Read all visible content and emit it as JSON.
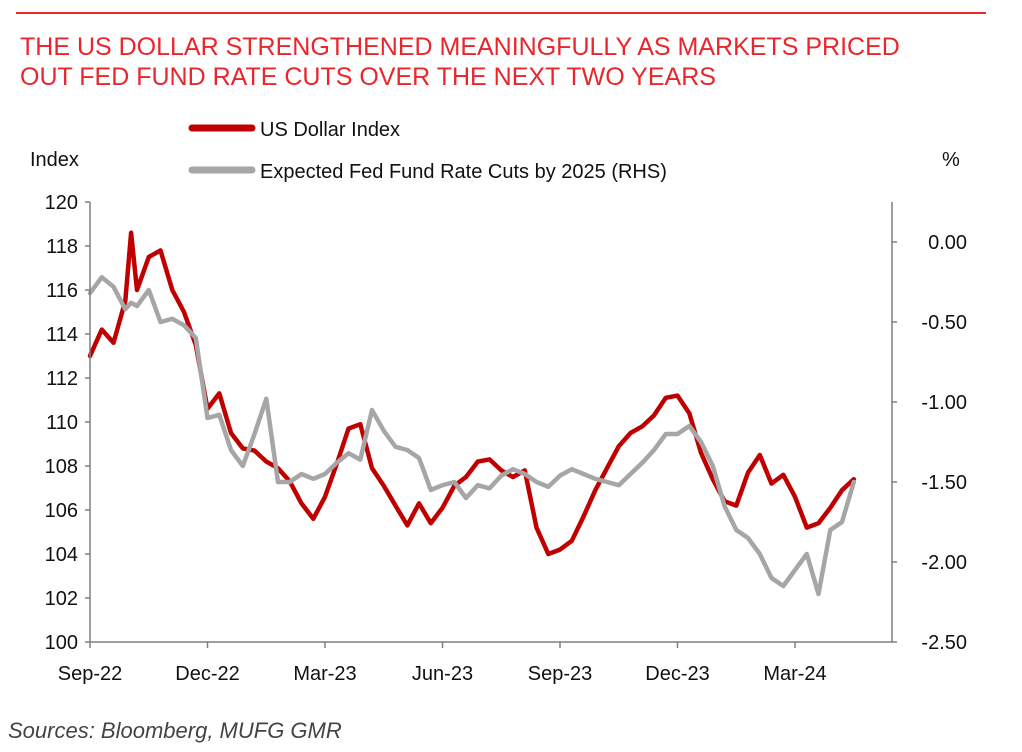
{
  "header": {
    "title_line1": "THE US DOLLAR STRENGTHENED MEANINGFULLY AS MARKETS PRICED",
    "title_line2": "OUT FED FUND RATE CUTS OVER THE NEXT TWO YEARS"
  },
  "footer": {
    "source": "Sources:  Bloomberg, MUFG GMR"
  },
  "colors": {
    "title": "#e8262b",
    "usd": "#c00000",
    "cuts": "#a6a6a6",
    "axis": "#7f7f7f"
  },
  "chart_data": {
    "type": "line",
    "left_axis_label": "Index",
    "right_axis_label": "%",
    "left_ylim": [
      100,
      120
    ],
    "right_ylim": [
      -2.5,
      0.25
    ],
    "left_ticks": [
      "100",
      "102",
      "104",
      "106",
      "108",
      "110",
      "112",
      "114",
      "116",
      "118",
      "120"
    ],
    "right_ticks": [
      "-2.50",
      "-2.00",
      "-1.50",
      "-1.00",
      "-0.50",
      "0.00"
    ],
    "x_ticks": [
      "Sep-22",
      "Dec-22",
      "Mar-23",
      "Jun-23",
      "Sep-23",
      "Dec-23",
      "Mar-24"
    ],
    "legend": [
      {
        "label": "US Dollar Index",
        "color": "#c00000"
      },
      {
        "label": "Expected Fed Fund Rate Cuts by 2025 (RHS)",
        "color": "#a6a6a6"
      }
    ],
    "series": [
      {
        "name": "US Dollar Index",
        "axis": "left",
        "x": [
          0,
          0.1,
          0.2,
          0.3,
          0.35,
          0.4,
          0.5,
          0.6,
          0.7,
          0.8,
          0.9,
          1.0,
          1.1,
          1.2,
          1.3,
          1.4,
          1.5,
          1.6,
          1.7,
          1.8,
          1.9,
          2.0,
          2.1,
          2.2,
          2.3,
          2.4,
          2.5,
          2.6,
          2.7,
          2.8,
          2.9,
          3.0,
          3.1,
          3.2,
          3.3,
          3.4,
          3.5,
          3.6,
          3.7,
          3.8,
          3.9,
          4.0,
          4.1,
          4.2,
          4.3,
          4.4,
          4.5,
          4.6,
          4.7,
          4.8,
          4.9,
          5.0,
          5.1,
          5.2,
          5.3,
          5.4,
          5.5,
          5.6,
          5.7,
          5.8,
          5.9,
          6.0,
          6.1,
          6.2,
          6.3,
          6.4,
          6.5
        ],
        "values": [
          113,
          114.2,
          113.6,
          115.5,
          118.6,
          116,
          117.5,
          117.8,
          116,
          115,
          113.5,
          110.6,
          111.3,
          109.5,
          108.8,
          108.7,
          108.2,
          107.9,
          107.3,
          106.3,
          105.6,
          106.6,
          108.1,
          109.7,
          109.9,
          107.9,
          107.1,
          106.2,
          105.3,
          106.3,
          105.4,
          106.1,
          107.1,
          107.5,
          108.2,
          108.3,
          107.8,
          107.5,
          107.8,
          105.2,
          104.0,
          104.2,
          104.6,
          105.7,
          106.9,
          107.9,
          108.9,
          109.5,
          109.8,
          110.3,
          111.1,
          111.2,
          110.4,
          108.6,
          107.4,
          106.4,
          106.2,
          107.7,
          108.5,
          107.2,
          107.6,
          106.6,
          105.2,
          105.4,
          106.1,
          106.9,
          107.4
        ]
      },
      {
        "name": "Expected Fed Fund Rate Cuts by 2025 (RHS)",
        "axis": "right",
        "x": [
          0,
          0.1,
          0.2,
          0.3,
          0.35,
          0.4,
          0.5,
          0.6,
          0.7,
          0.8,
          0.9,
          1.0,
          1.1,
          1.2,
          1.3,
          1.4,
          1.5,
          1.6,
          1.7,
          1.8,
          1.9,
          2.0,
          2.1,
          2.2,
          2.3,
          2.4,
          2.5,
          2.6,
          2.7,
          2.8,
          2.9,
          3.0,
          3.1,
          3.2,
          3.3,
          3.4,
          3.5,
          3.6,
          3.7,
          3.8,
          3.9,
          4.0,
          4.1,
          4.2,
          4.3,
          4.4,
          4.5,
          4.6,
          4.7,
          4.8,
          4.9,
          5.0,
          5.1,
          5.2,
          5.3,
          5.4,
          5.5,
          5.6,
          5.7,
          5.8,
          5.9,
          6.0,
          6.1,
          6.2,
          6.3,
          6.4,
          6.5
        ],
        "values": [
          -0.32,
          -0.22,
          -0.28,
          -0.42,
          -0.38,
          -0.4,
          -0.3,
          -0.5,
          -0.48,
          -0.52,
          -0.6,
          -1.1,
          -1.08,
          -1.3,
          -1.4,
          -1.2,
          -0.98,
          -1.5,
          -1.5,
          -1.45,
          -1.48,
          -1.45,
          -1.38,
          -1.32,
          -1.36,
          -1.05,
          -1.18,
          -1.28,
          -1.3,
          -1.35,
          -1.55,
          -1.52,
          -1.5,
          -1.6,
          -1.52,
          -1.54,
          -1.46,
          -1.42,
          -1.45,
          -1.5,
          -1.53,
          -1.46,
          -1.42,
          -1.45,
          -1.48,
          -1.5,
          -1.52,
          -1.45,
          -1.38,
          -1.3,
          -1.2,
          -1.2,
          -1.15,
          -1.25,
          -1.4,
          -1.65,
          -1.8,
          -1.85,
          -1.95,
          -2.1,
          -2.15,
          -2.05,
          -1.95,
          -2.2,
          -1.8,
          -1.75,
          -1.5
        ]
      }
    ]
  }
}
